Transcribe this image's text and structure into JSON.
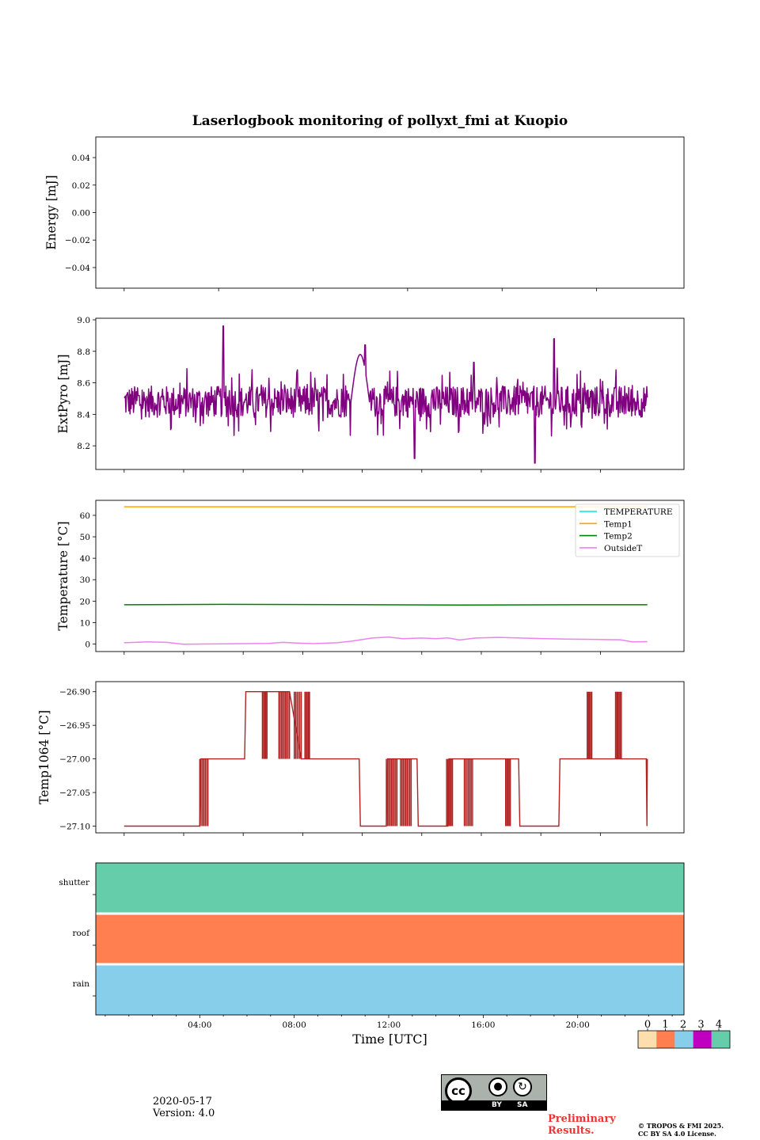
{
  "title": "Laserlogbook monitoring of pollyxt_fmi at Kuopio",
  "date": "2020-05-17",
  "version": "Version: 4.0",
  "preliminary": "Preliminary\nResults.",
  "copyright_line1": "© TROPOS & FMI 2025.",
  "copyright_line2": "CC BY SA 4.0 License.",
  "cc_badge": {
    "by": "BY",
    "sa": "SA"
  },
  "colors": {
    "extpyro": "#800080",
    "temperature": "#00e5ee",
    "temp1": "#ffa500",
    "temp2": "#008000",
    "outsidet": "#ee82ee",
    "temp1064": "#b22222",
    "flag0": "#ffdead",
    "flag1": "#ff7f50",
    "flag2": "#87ceeb",
    "flag3": "#c000c0",
    "flag4": "#66cdaa",
    "preliminary": "#ee3333"
  },
  "chart_data": [
    {
      "id": "energy",
      "type": "line",
      "ylabel": "Energy [mJ]",
      "ylim": [
        -0.055,
        0.055
      ],
      "yticks": [
        -0.04,
        -0.02,
        0.0,
        0.02,
        0.04
      ],
      "ytick_labels": [
        "−0.04",
        "−0.02",
        "0.00",
        "0.02",
        "0.04"
      ],
      "xlim_hours": [
        -0.4,
        24.5
      ],
      "series": []
    },
    {
      "id": "extpyro",
      "type": "line",
      "ylabel": "ExtPyro [mJ]",
      "ylim": [
        8.05,
        9.01
      ],
      "yticks": [
        8.2,
        8.4,
        8.6,
        8.8,
        9.0
      ],
      "ytick_labels": [
        "8.2",
        "8.4",
        "8.6",
        "8.8",
        "9.0"
      ],
      "xlim_hours": [
        -0.4,
        24.5
      ],
      "series": [
        {
          "name": "ExtPyro",
          "x_range": [
            0.8,
            22.95
          ],
          "mean": 8.48,
          "spread": 0.1,
          "peaks": [
            [
              5.0,
              8.96
            ],
            [
              19.0,
              8.88
            ],
            [
              11.0,
              8.84
            ],
            [
              15.6,
              8.73
            ],
            [
              18.2,
              8.09
            ],
            [
              13.1,
              8.12
            ]
          ]
        }
      ]
    },
    {
      "id": "temperature",
      "type": "line",
      "ylabel": "Temperature [°C]",
      "ylim": [
        -3.5,
        67
      ],
      "yticks": [
        0,
        10,
        20,
        30,
        40,
        50,
        60
      ],
      "ytick_labels": [
        "0",
        "10",
        "20",
        "30",
        "40",
        "50",
        "60"
      ],
      "xlim_hours": [
        -0.4,
        24.5
      ],
      "legend_position": "upper-right",
      "series": [
        {
          "name": "TEMPERATURE",
          "points": []
        },
        {
          "name": "Temp1",
          "points": [
            [
              0.8,
              64
            ],
            [
              22.95,
              64
            ]
          ]
        },
        {
          "name": "Temp2",
          "points": [
            [
              0.8,
              18.3
            ],
            [
              5.0,
              18.5
            ],
            [
              10.0,
              18.4
            ],
            [
              15.0,
              18.2
            ],
            [
              20.0,
              18.3
            ],
            [
              22.95,
              18.3
            ]
          ]
        },
        {
          "name": "OutsideT",
          "points": [
            [
              0.8,
              0.6
            ],
            [
              1.8,
              1.0
            ],
            [
              2.6,
              0.8
            ],
            [
              3.3,
              -0.1
            ],
            [
              5.0,
              0.1
            ],
            [
              6.9,
              0.3
            ],
            [
              7.5,
              0.8
            ],
            [
              8.1,
              0.5
            ],
            [
              8.8,
              0.2
            ],
            [
              9.8,
              0.6
            ],
            [
              10.4,
              1.3
            ],
            [
              11.3,
              2.8
            ],
            [
              12.0,
              3.2
            ],
            [
              12.6,
              2.5
            ],
            [
              13.4,
              2.8
            ],
            [
              14.0,
              2.5
            ],
            [
              14.5,
              2.9
            ],
            [
              15.0,
              1.9
            ],
            [
              15.7,
              2.8
            ],
            [
              16.6,
              3.1
            ],
            [
              17.4,
              2.9
            ],
            [
              18.3,
              2.6
            ],
            [
              19.5,
              2.3
            ],
            [
              21.0,
              2.1
            ],
            [
              21.8,
              2.0
            ],
            [
              22.3,
              1.0
            ],
            [
              22.95,
              1.1
            ]
          ]
        }
      ]
    },
    {
      "id": "temp1064",
      "type": "line",
      "ylabel": "Temp1064 [°C]",
      "ylim": [
        -27.11,
        -26.885
      ],
      "yticks": [
        -27.1,
        -27.05,
        -27.0,
        -26.95,
        -26.9
      ],
      "ytick_labels": [
        "−27.10",
        "−27.05",
        "−27.00",
        "−26.95",
        "−26.90"
      ],
      "xlim_hours": [
        -0.4,
        24.5
      ],
      "series": [
        {
          "name": "Temp1064",
          "levels": [
            -27.1,
            -27.0,
            -26.9
          ],
          "segments": [
            [
              0.8,
              -27.1
            ],
            [
              4.0,
              -27.1
            ],
            [
              4.05,
              -27.0
            ],
            [
              5.9,
              -27.0
            ],
            [
              5.95,
              -26.9
            ],
            [
              7.8,
              -26.9
            ],
            [
              8.3,
              -27.0
            ],
            [
              10.75,
              -27.0
            ],
            [
              10.8,
              -27.1
            ],
            [
              11.9,
              -27.1
            ],
            [
              11.95,
              -27.0
            ],
            [
              13.2,
              -27.0
            ],
            [
              13.25,
              -27.1
            ],
            [
              14.5,
              -27.1
            ],
            [
              14.55,
              -27.0
            ],
            [
              17.5,
              -27.0
            ],
            [
              17.55,
              -27.1
            ],
            [
              19.2,
              -27.1
            ],
            [
              19.25,
              -27.0
            ],
            [
              22.9,
              -27.0
            ],
            [
              22.93,
              -27.1
            ],
            [
              22.95,
              -27.0
            ]
          ],
          "flicker_ranges": [
            [
              4.0,
              4.35,
              -27.1,
              -27.0
            ],
            [
              6.65,
              6.85,
              -27.0,
              -26.9
            ],
            [
              7.35,
              7.8,
              -27.0,
              -26.9
            ],
            [
              8.0,
              8.3,
              -27.0,
              -26.9
            ],
            [
              8.45,
              8.65,
              -27.0,
              -26.9
            ],
            [
              11.9,
              12.35,
              -27.1,
              -27.0
            ],
            [
              12.5,
              12.95,
              -27.1,
              -27.0
            ],
            [
              14.45,
              14.7,
              -27.1,
              -27.0
            ],
            [
              15.2,
              15.55,
              -27.1,
              -27.0
            ],
            [
              16.95,
              17.15,
              -27.1,
              -27.0
            ],
            [
              20.4,
              20.6,
              -27.0,
              -26.9
            ],
            [
              21.6,
              21.85,
              -27.0,
              -26.9
            ]
          ]
        }
      ]
    },
    {
      "id": "flags",
      "type": "heatmap",
      "xlabel": "Time [UTC]",
      "rows": [
        "shutter",
        "roof",
        "rain"
      ],
      "row_values": [
        4,
        1,
        2
      ],
      "xlim_hours": [
        -0.4,
        24.5
      ],
      "xtick_hours": [
        4,
        8,
        12,
        16,
        20
      ],
      "xtick_labels": [
        "04:00",
        "08:00",
        "12:00",
        "16:00",
        "20:00"
      ],
      "colorbar": {
        "ticks": [
          "0",
          "1",
          "2",
          "3",
          "4"
        ]
      }
    }
  ]
}
